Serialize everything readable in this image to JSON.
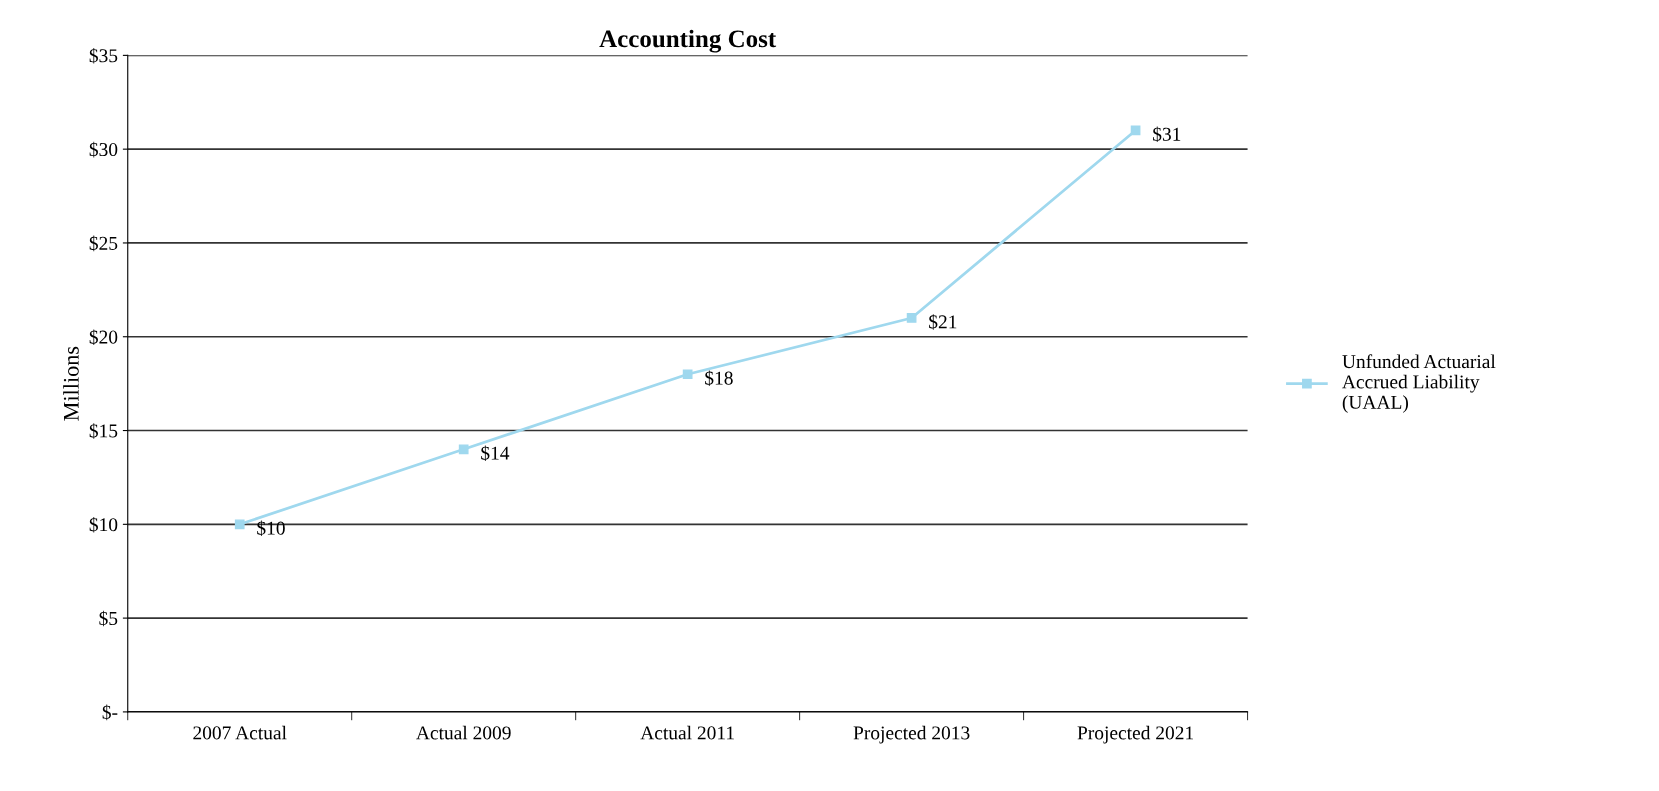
{
  "chart_data": {
    "type": "line",
    "title": "Accounting Cost",
    "ylabel": "Millions",
    "categories": [
      "2007 Actual",
      "Actual 2009",
      "Actual 2011",
      "Projected 2013",
      "Projected 2021"
    ],
    "series": [
      {
        "name": "Unfunded Actuarial\nAccrued Liability\n(UAAL)",
        "color": "#9fd8ee",
        "values": [
          10,
          14,
          18,
          21,
          31
        ],
        "value_labels": [
          "$10",
          "$14",
          "$18",
          "$21",
          "$31"
        ]
      }
    ],
    "ylim": [
      0,
      35
    ],
    "yticks": [
      {
        "value": 0,
        "label": "$-"
      },
      {
        "value": 5,
        "label": "$5"
      },
      {
        "value": 10,
        "label": "$10"
      },
      {
        "value": 15,
        "label": "$15"
      },
      {
        "value": 20,
        "label": "$20"
      },
      {
        "value": 25,
        "label": "$25"
      },
      {
        "value": 30,
        "label": "$30"
      },
      {
        "value": 35,
        "label": "$35"
      }
    ],
    "grid": "y",
    "legend": "right",
    "marker": "square",
    "line_style": "solid"
  }
}
